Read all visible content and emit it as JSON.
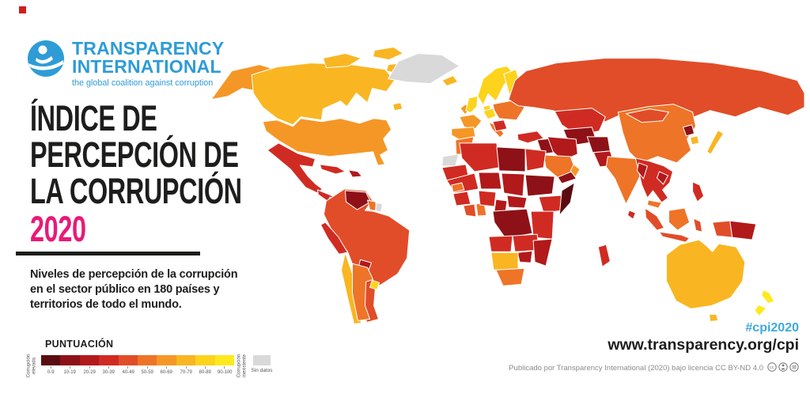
{
  "brand": {
    "corner_mark_color": "#cf1d1d",
    "logo_color": "#2f9cd6",
    "logo_line1": "TRANSPARENCY",
    "logo_line2": "INTERNATIONAL",
    "tagline": "the global coalition against corruption"
  },
  "title": {
    "lines": [
      "ÍNDICE DE",
      "PERCEPCIÓN DE",
      "LA CORRUPCIÓN"
    ],
    "year": "2020",
    "year_color": "#e81a78"
  },
  "intro": {
    "lines": [
      "Niveles de percepción de la corrupción",
      "en el sector público en 180 países y",
      "territorios de todo el mundo."
    ]
  },
  "legend": {
    "heading": "PUNTUACIÓN",
    "low_label": [
      "Corrupción",
      "elevada"
    ],
    "high_label": [
      "Corrupción",
      "inexistente"
    ],
    "no_data_label": "Sin datos",
    "no_data_color": "#d9d9d9",
    "bands": [
      {
        "label": "0-9",
        "color": "#5a0c11"
      },
      {
        "label": "10-19",
        "color": "#8e1118"
      },
      {
        "label": "20-29",
        "color": "#b2191b"
      },
      {
        "label": "30-39",
        "color": "#d02b22"
      },
      {
        "label": "40-49",
        "color": "#e14d28"
      },
      {
        "label": "50-59",
        "color": "#ee7428"
      },
      {
        "label": "60-69",
        "color": "#f59727"
      },
      {
        "label": "70-79",
        "color": "#f9b622"
      },
      {
        "label": "80-89",
        "color": "#fdd31c"
      },
      {
        "label": "90-100",
        "color": "#ffe91e"
      }
    ]
  },
  "footer": {
    "hashtag": "#cpi2020",
    "hashtag_color": "#3fa9dc",
    "url": "www.transparency.org/cpi",
    "license": "Publicado por Transparency International (2020) bajo licencia CC BY-ND 4.0"
  },
  "map": {
    "regions": {
      "greenland": "nd",
      "wsahara": "nd",
      "suriname": "nd",
      "somalia": 0,
      "venezuela": 1,
      "libya": 1,
      "sudan": 1,
      "drc": 1,
      "yemen": 1,
      "syria_iraq": 1,
      "turkmenistan": 1,
      "afghanistan": 1,
      "nkorea": 1,
      "nicaragua": 1,
      "haiti": 2,
      "paraguay": 2,
      "myanmar": 2,
      "laos_cambodia": 2,
      "pakistan": 2,
      "iran": 2,
      "niger": 2,
      "chad": 2,
      "cameroon": 2,
      "car": 2,
      "zimbabwe": 2,
      "mozambique": 2,
      "png": 2,
      "mexico": 3,
      "central_america": 3,
      "cuba": 3,
      "peru": 3,
      "turkey": 3,
      "kazakhstan": 3,
      "algeria": 3,
      "egypt": 3,
      "mauritania": 3,
      "mali": 3,
      "guinea": 3,
      "nigeria": 3,
      "ethiopia": 3,
      "kenya_tanzania": 3,
      "angola": 3,
      "zambia": 3,
      "madagascar": 3,
      "philippines": 3,
      "sri_lanka": 3,
      "balkans": 3,
      "southeast_asia": 3,
      "south_america": 4,
      "russia": 4,
      "ivory_coast": 4,
      "indonesia": 4,
      "mongolia": 4,
      "guyana": 5,
      "argentina": 5,
      "italy": 5,
      "eastern_europe": 5,
      "india": 5,
      "saudi_arabia": 5,
      "china": 5,
      "ghana": 5,
      "south_africa": 5,
      "malaysia": 5,
      "borneo": 5,
      "senegal": 5,
      "morocco": 5,
      "usa": 6,
      "alaska": 6,
      "france": 6,
      "iberia": 6,
      "oman": 6,
      "ireland": 6,
      "canada": 7,
      "arctic_islands": 7,
      "newfoundland": 7,
      "iceland": 7,
      "chile": 7,
      "namibia_botswana": 7,
      "south_korea": 7,
      "japan": 7,
      "australia": 7,
      "tasmania": 7,
      "uk": 8,
      "scandinavia": 8,
      "finland": 8,
      "denmark": 8,
      "germany": 8,
      "uruguay": 8,
      "new_zealand": 9
    }
  }
}
